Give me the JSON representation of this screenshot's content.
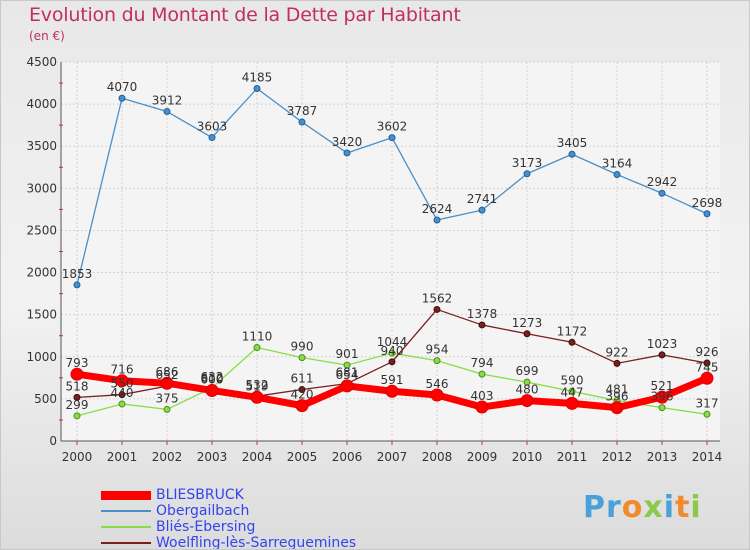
{
  "chart_data": {
    "type": "line",
    "title": "Evolution du Montant de la Dette par Habitant",
    "subtitle": "(en €)",
    "xlabel": "",
    "ylabel": "",
    "ylim": [
      0,
      4500
    ],
    "yticks": [
      0,
      500,
      1000,
      1500,
      2000,
      2500,
      3000,
      3500,
      4000,
      4500
    ],
    "grid": true,
    "legend_position": "bottom-left",
    "categories": [
      "2000",
      "2001",
      "2002",
      "2003",
      "2004",
      "2005",
      "2006",
      "2007",
      "2008",
      "2009",
      "2010",
      "2011",
      "2012",
      "2013",
      "2014"
    ],
    "series": [
      {
        "name": "BLIESBRUCK",
        "color": "#ff0000",
        "values": [
          793,
          716,
          686,
          600,
          519,
          420,
          654,
          591,
          546,
          403,
          480,
          447,
          396,
          521,
          745
        ]
      },
      {
        "name": "Obergailbach",
        "color": "#4a90c8",
        "values": [
          1853,
          4070,
          3912,
          3603,
          4185,
          3787,
          3420,
          3602,
          2624,
          2741,
          3173,
          3405,
          3164,
          2942,
          2698
        ]
      },
      {
        "name": "Bliés-Ebersing",
        "color": "#88dd44",
        "values": [
          299,
          440,
          375,
          632,
          1110,
          990,
          901,
          1044,
          954,
          794,
          699,
          590,
          481,
          396,
          317
        ]
      },
      {
        "name": "Woelfling-lès-Sarreguemines",
        "color": "#7a1e1e",
        "values": [
          518,
          550,
          652,
          610,
          532,
          611,
          681,
          940,
          1562,
          1378,
          1273,
          1172,
          922,
          1023,
          926
        ]
      }
    ]
  },
  "brand": {
    "part1": "Pr",
    "part2": "o",
    "part3": "x",
    "part4": "i",
    "part5": "t",
    "part6": "i"
  }
}
